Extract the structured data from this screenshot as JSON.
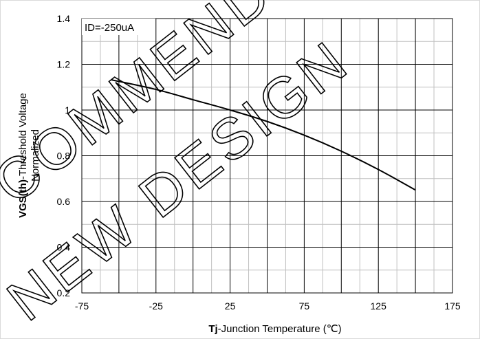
{
  "chart_data": {
    "type": "line",
    "annotation": "ID=-250uA",
    "ylabel": {
      "bold_part": "VGS(th)",
      "line1_rest": "-Threshold Voltage",
      "line2": "Normalized"
    },
    "xlabel": {
      "bold_part": "Tj",
      "rest": "-Junction Temperature (℃)"
    },
    "xlim": [
      -75,
      175
    ],
    "ylim": [
      0.2,
      1.4
    ],
    "x_ticks": [
      -75,
      -25,
      25,
      75,
      125,
      175
    ],
    "x_tick_labels": [
      "-75",
      "-25",
      "25",
      "75",
      "125",
      "175"
    ],
    "y_ticks": [
      0.2,
      0.4,
      0.6,
      0.8,
      1.0,
      1.2,
      1.4
    ],
    "y_tick_labels": [
      "0.2",
      "0.4",
      "0.6",
      "0.8",
      "1",
      "1.2",
      "1.4"
    ],
    "grid": true,
    "series": [
      {
        "color": "#000000",
        "x": [
          -55,
          -25,
          0,
          25,
          50,
          75,
          100,
          125,
          150
        ],
        "y": [
          1.132,
          1.09,
          1.045,
          1.0,
          0.95,
          0.89,
          0.82,
          0.74,
          0.65
        ]
      }
    ],
    "watermark": [
      "NEW DESIGN",
      "COMMENDED"
    ]
  }
}
